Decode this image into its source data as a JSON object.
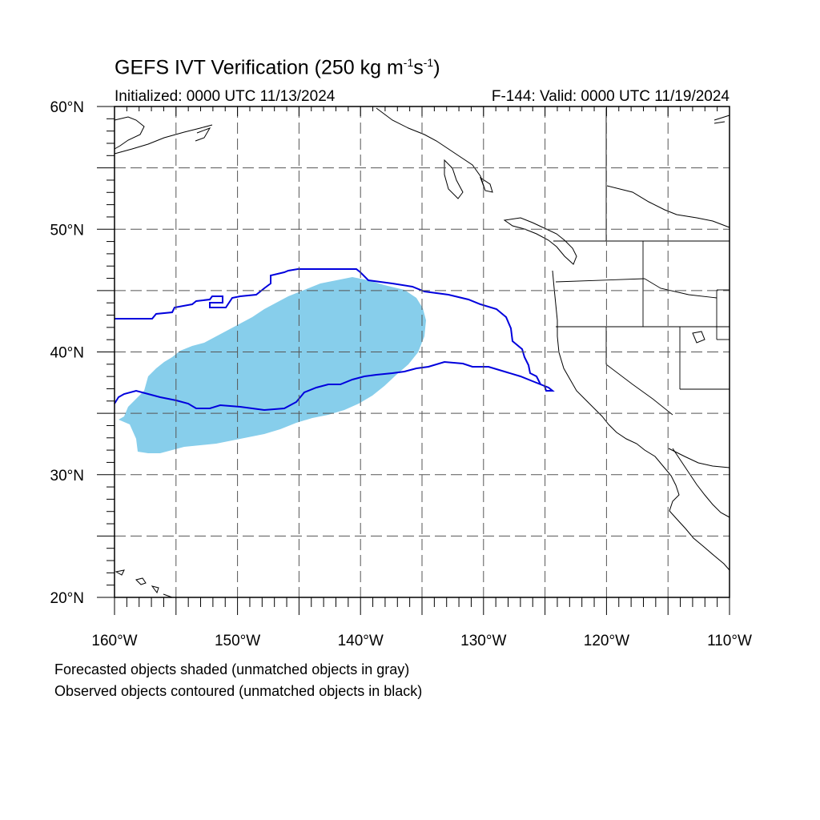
{
  "title": {
    "main": "GEFS IVT Verification (250 kg m",
    "sup1": "-1",
    "mid": "s",
    "sup2": "-1",
    "end": ")"
  },
  "subtitle": {
    "left": "Initialized: 0000 UTC 11/13/2024",
    "right": "F-144: Valid: 0000 UTC 11/19/2024"
  },
  "notes": [
    "Forecasted objects shaded (unmatched objects in gray)",
    "Observed objects contoured (unmatched objects in black)"
  ],
  "map": {
    "lon_range": [
      -160,
      -110
    ],
    "lat_range": [
      20,
      60
    ],
    "lat_ticks": [
      {
        "value": 60,
        "label": "60°N"
      },
      {
        "value": 50,
        "label": "50°N"
      },
      {
        "value": 40,
        "label": "40°N"
      },
      {
        "value": 30,
        "label": "30°N"
      },
      {
        "value": 20,
        "label": "20°N"
      }
    ],
    "lon_ticks": [
      {
        "value": -160,
        "label": "160°W"
      },
      {
        "value": -150,
        "label": "150°W"
      },
      {
        "value": -140,
        "label": "140°W"
      },
      {
        "value": -130,
        "label": "130°W"
      },
      {
        "value": -120,
        "label": "120°W"
      },
      {
        "value": -110,
        "label": "110°W"
      }
    ],
    "colors": {
      "forecast_fill": "#87ceeb",
      "observed_contour": "#0000dd",
      "coastline": "#000000",
      "grid": "#555555"
    }
  }
}
